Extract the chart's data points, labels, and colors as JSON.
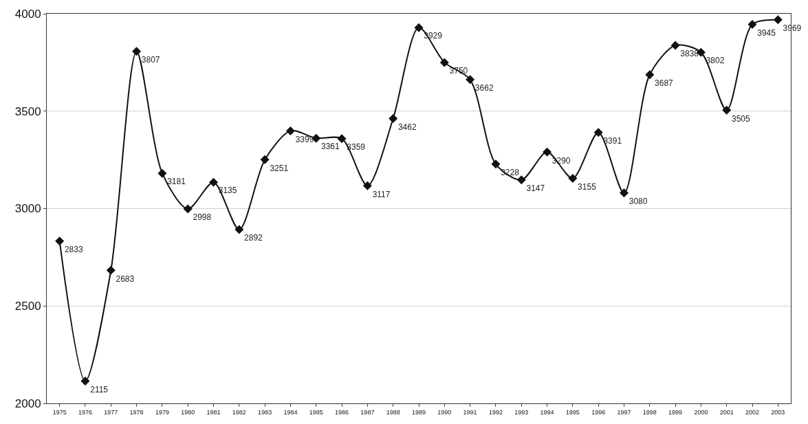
{
  "chart_data": {
    "type": "line",
    "categories": [
      "1975",
      "1976",
      "1977",
      "1978",
      "1979",
      "1980",
      "1981",
      "1982",
      "1983",
      "1984",
      "1985",
      "1986",
      "1987",
      "1988",
      "1989",
      "1990",
      "1991",
      "1992",
      "1993",
      "1994",
      "1995",
      "1996",
      "1997",
      "1998",
      "1999",
      "2000",
      "2001",
      "2002",
      "2003"
    ],
    "series": [
      {
        "color": "#111111",
        "values": [
          2833,
          2115,
          2683,
          3807,
          3181,
          2998,
          3135,
          2892,
          3251,
          3399,
          3361,
          3359,
          3117,
          3462,
          3929,
          3750,
          3662,
          3228,
          3147,
          3290,
          3155,
          3391,
          3080,
          3687,
          3838,
          3802,
          3505,
          3945,
          3969
        ]
      }
    ],
    "ylim": [
      2000,
      4000
    ],
    "yticks": [
      2000,
      2500,
      3000,
      3500,
      4000
    ],
    "grid": "y",
    "legend": false,
    "marker": "diamond",
    "line_style": "solid",
    "data_labels": true
  }
}
